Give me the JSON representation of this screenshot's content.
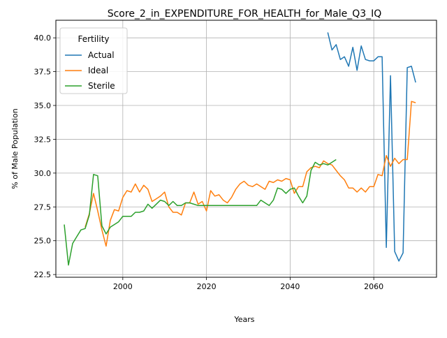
{
  "chart_data": {
    "type": "line",
    "title": "Score_2_in_EXPENDITURE_FOR_HEALTH_for_Male_Q3_IQ",
    "xlabel": "Years",
    "ylabel": "% of Male Population",
    "xlim": [
      1984,
      2075
    ],
    "ylim": [
      22.3,
      41.3
    ],
    "xticks": [
      2000,
      2020,
      2040,
      2060
    ],
    "yticks": [
      22.5,
      25.0,
      27.5,
      30.0,
      32.5,
      35.0,
      37.5,
      40.0
    ],
    "xtick_labels": [
      "2000",
      "2020",
      "2040",
      "2060"
    ],
    "ytick_labels": [
      "22.5",
      "25.0",
      "27.5",
      "30.0",
      "32.5",
      "35.0",
      "37.5",
      "40.0"
    ],
    "grid": true,
    "legend": {
      "title": "Fertility",
      "placement": "top-left"
    },
    "series": [
      {
        "name": "Actual",
        "color": "#1f77b4",
        "x": [
          2049,
          2050,
          2051,
          2052,
          2053,
          2054,
          2055,
          2056,
          2057,
          2058,
          2059,
          2060,
          2061,
          2062,
          2063,
          2064,
          2065,
          2066,
          2067,
          2068,
          2069,
          2070
        ],
        "y": [
          40.4,
          39.1,
          39.5,
          38.4,
          38.6,
          37.9,
          39.3,
          37.6,
          39.4,
          38.4,
          38.3,
          38.3,
          38.6,
          38.6,
          24.5,
          37.2,
          24.2,
          23.5,
          24.1,
          37.8,
          37.9,
          36.7
        ]
      },
      {
        "name": "Ideal",
        "color": "#ff7f0e",
        "x": [
          1991,
          1992,
          1993,
          1994,
          1995,
          1996,
          1997,
          1998,
          1999,
          2000,
          2001,
          2002,
          2003,
          2004,
          2005,
          2006,
          2007,
          2008,
          2009,
          2010,
          2011,
          2012,
          2013,
          2014,
          2015,
          2016,
          2017,
          2018,
          2019,
          2020,
          2021,
          2022,
          2023,
          2024,
          2025,
          2026,
          2027,
          2028,
          2029,
          2030,
          2031,
          2032,
          2033,
          2034,
          2035,
          2036,
          2037,
          2038,
          2039,
          2040,
          2041,
          2042,
          2043,
          2044,
          2045,
          2046,
          2047,
          2048,
          2049,
          2050,
          2051,
          2052,
          2053,
          2054,
          2055,
          2056,
          2057,
          2058,
          2059,
          2060,
          2061,
          2062,
          2063,
          2064,
          2065,
          2066,
          2067,
          2068,
          2069,
          2070
        ],
        "y": [
          26.0,
          27.0,
          28.5,
          27.2,
          25.8,
          24.6,
          26.5,
          27.3,
          27.2,
          28.2,
          28.7,
          28.6,
          29.2,
          28.6,
          29.1,
          28.8,
          27.9,
          28.1,
          28.3,
          28.6,
          27.5,
          27.1,
          27.1,
          26.9,
          27.8,
          27.8,
          28.6,
          27.7,
          27.9,
          27.2,
          28.7,
          28.3,
          28.4,
          28.0,
          27.8,
          28.2,
          28.8,
          29.2,
          29.4,
          29.1,
          29.0,
          29.2,
          29.0,
          28.8,
          29.4,
          29.3,
          29.5,
          29.4,
          29.6,
          29.5,
          28.5,
          29.0,
          29.0,
          30.1,
          30.4,
          30.5,
          30.4,
          30.9,
          30.7,
          30.6,
          30.2,
          29.8,
          29.5,
          28.9,
          28.9,
          28.6,
          28.9,
          28.6,
          29.0,
          29.0,
          29.9,
          29.8,
          31.3,
          30.5,
          31.1,
          30.7,
          31.0,
          31.0,
          35.3,
          35.2
        ]
      },
      {
        "name": "Sterile",
        "color": "#2ca02c",
        "x": [
          1986,
          1987,
          1988,
          1989,
          1990,
          1991,
          1992,
          1993,
          1994,
          1995,
          1996,
          1997,
          1998,
          1999,
          2000,
          2001,
          2002,
          2003,
          2004,
          2005,
          2006,
          2007,
          2008,
          2009,
          2010,
          2011,
          2012,
          2013,
          2014,
          2015,
          2016,
          2017,
          2018,
          2019,
          2020,
          2021,
          2022,
          2023,
          2024,
          2025,
          2026,
          2027,
          2028,
          2029,
          2030,
          2031,
          2032,
          2033,
          2034,
          2035,
          2036,
          2037,
          2038,
          2039,
          2040,
          2041,
          2042,
          2043,
          2044,
          2045,
          2046,
          2047,
          2048,
          2049,
          2050,
          2051
        ],
        "y": [
          26.2,
          23.2,
          24.8,
          25.3,
          25.8,
          25.9,
          26.9,
          29.9,
          29.8,
          26.1,
          25.5,
          26.0,
          26.2,
          26.4,
          26.8,
          26.8,
          26.8,
          27.1,
          27.1,
          27.2,
          27.7,
          27.4,
          27.7,
          28.0,
          27.9,
          27.6,
          27.9,
          27.6,
          27.6,
          27.8,
          27.8,
          27.7,
          27.6,
          27.6,
          27.6,
          27.6,
          27.6,
          27.6,
          27.6,
          27.6,
          27.6,
          27.6,
          27.6,
          27.6,
          27.6,
          27.6,
          27.6,
          28.0,
          27.8,
          27.6,
          28.0,
          28.9,
          28.8,
          28.5,
          28.8,
          28.9,
          28.3,
          27.8,
          28.3,
          30.2,
          30.8,
          30.6,
          30.7,
          30.6,
          30.8,
          31.0
        ]
      }
    ]
  }
}
